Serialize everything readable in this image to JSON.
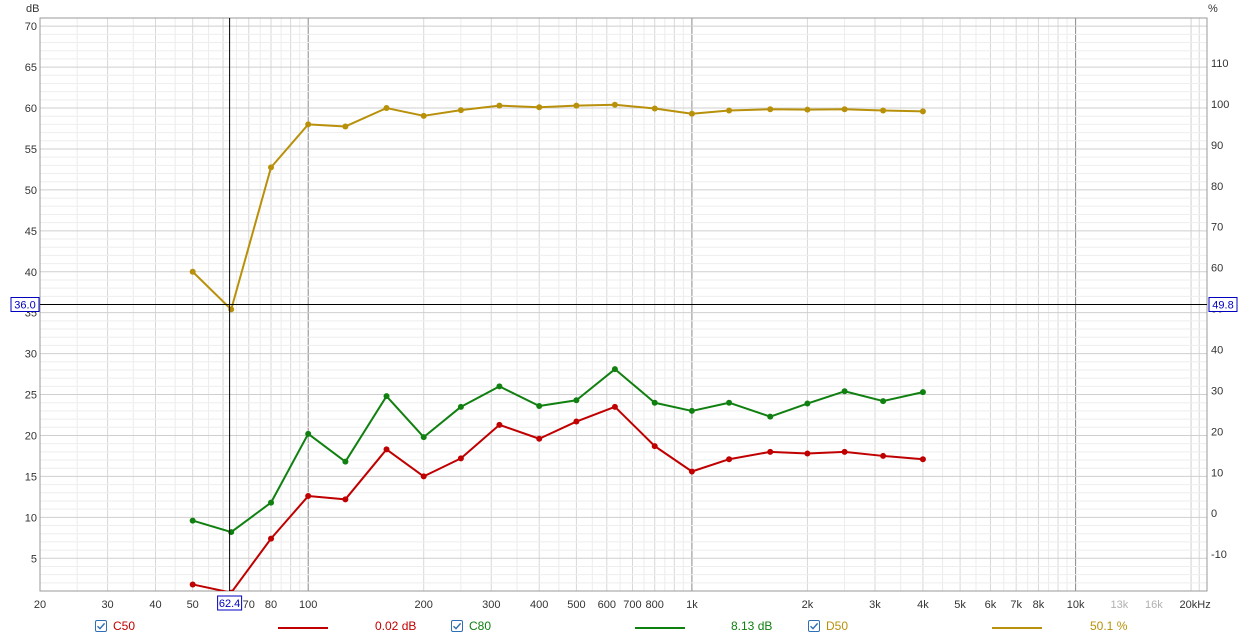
{
  "chart_data": {
    "type": "line",
    "x_scale": "log",
    "x_unit": "Hz",
    "y_left_unit": "dB",
    "y_right_unit": "%",
    "y_left_range": [
      1,
      71
    ],
    "y_right_range": [
      -19,
      121
    ],
    "x_range": [
      20,
      22000
    ],
    "grid": true,
    "x_ticks": [
      "20",
      "30",
      "40",
      "50",
      "70",
      "80",
      "100",
      "200",
      "300",
      "400",
      "500",
      "600",
      "700",
      "800",
      "1k",
      "2k",
      "3k",
      "4k",
      "5k",
      "6k",
      "7k",
      "8k",
      "10k",
      "13k",
      "16k",
      "20kHz"
    ],
    "x_ticks_dim": [
      "13k",
      "16k"
    ],
    "y_left_ticks": [
      "5",
      "10",
      "15",
      "20",
      "25",
      "30",
      "35",
      "40",
      "45",
      "50",
      "55",
      "60",
      "65",
      "70"
    ],
    "y_right_ticks": [
      "-10",
      "0",
      "10",
      "20",
      "30",
      "40",
      "50",
      "60",
      "70",
      "80",
      "90",
      "100",
      "110"
    ],
    "cursor": {
      "x_label": "62.4",
      "y_left_label": "36.0",
      "y_right_label": "49.8",
      "x": 62.4,
      "y": 36.0
    },
    "series": [
      {
        "name": "C50",
        "axis": "left",
        "color": "#c00000",
        "x": [
          50,
          63,
          80,
          100,
          125,
          160,
          200,
          250,
          315,
          400,
          500,
          630,
          800,
          1000,
          1250,
          1600,
          2000,
          2500,
          3150,
          4000
        ],
        "y": [
          1.8,
          0.8,
          7.4,
          12.6,
          12.2,
          18.3,
          15.0,
          17.2,
          21.3,
          19.6,
          21.7,
          23.5,
          18.7,
          15.6,
          17.1,
          18.0,
          17.8,
          18.0,
          17.5,
          17.1
        ]
      },
      {
        "name": "C80",
        "axis": "left",
        "color": "#108010",
        "x": [
          50,
          63,
          80,
          100,
          125,
          160,
          200,
          250,
          315,
          400,
          500,
          630,
          800,
          1000,
          1250,
          1600,
          2000,
          2500,
          3150,
          4000
        ],
        "y": [
          9.6,
          8.2,
          11.8,
          20.2,
          16.8,
          24.8,
          19.8,
          23.5,
          26.0,
          23.6,
          24.3,
          28.1,
          24.0,
          23.0,
          24.0,
          22.3,
          23.9,
          25.4,
          24.2,
          25.3
        ]
      },
      {
        "name": "D50",
        "axis": "right",
        "color": "#b8900a",
        "x": [
          50,
          63,
          80,
          100,
          125,
          160,
          200,
          250,
          315,
          400,
          500,
          630,
          800,
          1000,
          1250,
          1600,
          2000,
          2500,
          3150,
          4000
        ],
        "y": [
          59.0,
          49.8,
          84.5,
          95.0,
          94.5,
          99.0,
          97.1,
          98.5,
          99.6,
          99.2,
          99.6,
          99.8,
          98.9,
          97.6,
          98.4,
          98.7,
          98.6,
          98.7,
          98.4,
          98.2
        ]
      }
    ]
  },
  "legend": [
    {
      "name": "C50",
      "value": "0.02 dB",
      "color": "#c00000"
    },
    {
      "name": "C80",
      "value": "8.13 dB",
      "color": "#108010"
    },
    {
      "name": "D50",
      "value": "50.1 %",
      "color": "#b8900a"
    }
  ]
}
